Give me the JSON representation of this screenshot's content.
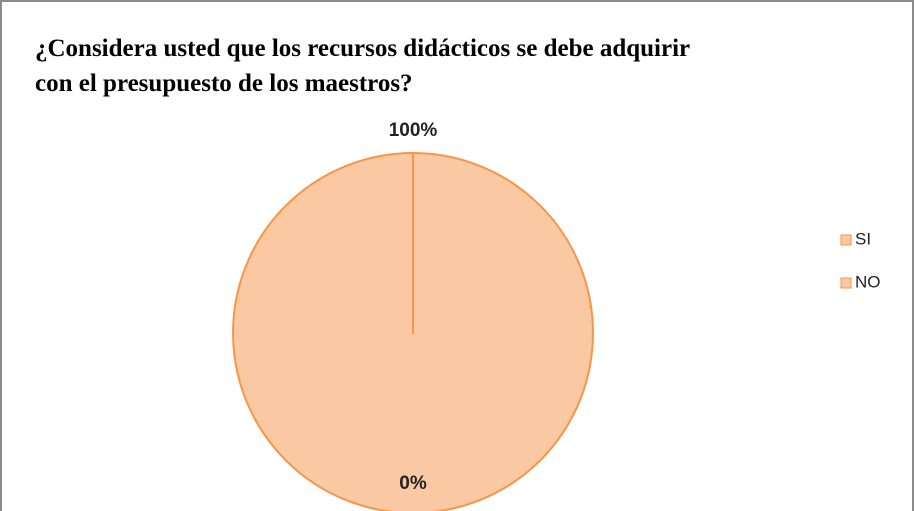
{
  "chart_data": {
    "type": "pie",
    "title": "¿Considera usted que los recursos didácticos se debe adquirir con el presupuesto de los maestros?",
    "title_lines": [
      "¿Considera usted que los recursos didácticos se debe adquirir",
      "con el presupuesto de los maestros?"
    ],
    "categories": [
      "SI",
      "NO"
    ],
    "values": [
      100,
      0
    ],
    "value_labels": [
      "100%",
      "0%"
    ],
    "colors": [
      "#fac8a2",
      "#fac8a2"
    ],
    "edge_color": "#f79646",
    "legend": "right"
  }
}
